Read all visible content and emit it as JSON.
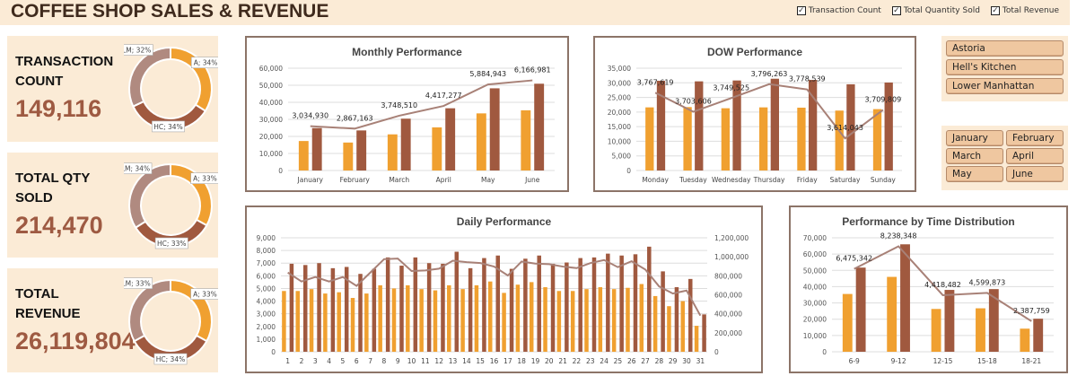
{
  "header": {
    "title": "COFFEE SHOP SALES & REVENUE",
    "toggles": [
      {
        "label": "Transaction Count",
        "checked": true
      },
      {
        "label": "Total Quantity Sold",
        "checked": true
      },
      {
        "label": "Total Revenue",
        "checked": true
      }
    ]
  },
  "colors": {
    "transactions": "#F0A030",
    "quantity": "#A0593F",
    "revenue_line": "#A88177",
    "lm": "#B08A80",
    "panel": "#FBEBD6"
  },
  "kpis": [
    {
      "label": "TRANSACTION COUNT",
      "value": "149,116",
      "slices": [
        {
          "label": "A; 34%",
          "pct": 34
        },
        {
          "label": "HC; 34%",
          "pct": 34
        },
        {
          "label": "LM; 32%",
          "pct": 32
        }
      ]
    },
    {
      "label": "TOTAL QTY SOLD",
      "value": "214,470",
      "slices": [
        {
          "label": "A; 33%",
          "pct": 33
        },
        {
          "label": "HC; 33%",
          "pct": 33
        },
        {
          "label": "LM; 34%",
          "pct": 34
        }
      ]
    },
    {
      "label": "TOTAL REVENUE",
      "value": "26,119,804",
      "slices": [
        {
          "label": "A; 33%",
          "pct": 33
        },
        {
          "label": "HC; 34%",
          "pct": 34
        },
        {
          "label": "LM; 33%",
          "pct": 33
        }
      ]
    }
  ],
  "slicers": {
    "locations": [
      "Astoria",
      "Hell's Kitchen",
      "Lower Manhattan"
    ],
    "months": [
      "January",
      "February",
      "March",
      "April",
      "May",
      "June"
    ]
  },
  "chart_data": [
    {
      "id": "monthly",
      "type": "bar",
      "title": "Monthly Performance",
      "categories": [
        "January",
        "February",
        "March",
        "April",
        "May",
        "June"
      ],
      "ylim": [
        0,
        60000
      ],
      "yticks": [
        0,
        10000,
        20000,
        30000,
        40000,
        50000,
        60000
      ],
      "grid": true,
      "series": [
        {
          "values": [
            17300,
            16400,
            21200,
            25300,
            33500,
            35300
          ]
        },
        {
          "values": [
            24900,
            23500,
            30400,
            36500,
            48200,
            50900
          ]
        }
      ],
      "line": {
        "values": [
          3034930,
          2867163,
          3748510,
          4417277,
          5884943,
          6166981
        ],
        "labels": [
          "3,034,930",
          "2,867,163",
          "3,748,510",
          "4,417,277",
          "5,884,943",
          "6,166,981"
        ],
        "ylim": [
          0,
          7000000
        ]
      }
    },
    {
      "id": "dow",
      "type": "bar",
      "title": "DOW Performance",
      "categories": [
        "Monday",
        "Tuesday",
        "Wednesday",
        "Thursday",
        "Friday",
        "Saturday",
        "Sunday"
      ],
      "ylim": [
        0,
        35000
      ],
      "yticks": [
        0,
        5000,
        10000,
        15000,
        20000,
        25000,
        30000,
        35000
      ],
      "grid": true,
      "series": [
        {
          "values": [
            21600,
            21700,
            21300,
            21600,
            21500,
            20500,
            21000
          ]
        },
        {
          "values": [
            30700,
            30500,
            30800,
            31400,
            31000,
            29500,
            30100
          ]
        }
      ],
      "line": {
        "values": [
          3767619,
          3703606,
          3749525,
          3796263,
          3778539,
          3614043,
          3709809
        ],
        "labels": [
          "3,767,619",
          "3,703,606",
          "3,749,525",
          "3,796,263",
          "3,778,539",
          "3,614,043",
          "3,709,809"
        ],
        "ylim": [
          3506000,
          3850000
        ]
      }
    },
    {
      "id": "daily",
      "type": "bar",
      "title": "Daily Performance",
      "categories": [
        "1",
        "2",
        "3",
        "4",
        "5",
        "6",
        "7",
        "8",
        "9",
        "10",
        "11",
        "12",
        "13",
        "14",
        "15",
        "16",
        "17",
        "18",
        "19",
        "20",
        "21",
        "22",
        "23",
        "24",
        "25",
        "26",
        "27",
        "28",
        "29",
        "30",
        "31"
      ],
      "ylim": [
        0,
        9000
      ],
      "yticks": [
        0,
        1000,
        2000,
        3000,
        4000,
        5000,
        6000,
        7000,
        8000,
        9000
      ],
      "grid": true,
      "series": [
        {
          "values": [
            4800,
            4800,
            4950,
            4600,
            4700,
            4250,
            4600,
            5250,
            5000,
            5250,
            4950,
            4850,
            5250,
            4950,
            5250,
            5550,
            4650,
            5300,
            5500,
            5100,
            4800,
            4800,
            4950,
            5100,
            4950,
            5050,
            5350,
            4400,
            3600,
            4000,
            2050
          ]
        },
        {
          "values": [
            6950,
            6850,
            7000,
            6600,
            6700,
            6150,
            6550,
            7450,
            6800,
            7450,
            7000,
            6950,
            7900,
            6600,
            7400,
            7600,
            6550,
            7350,
            7600,
            6950,
            7050,
            7400,
            7450,
            7750,
            7600,
            7700,
            8300,
            6350,
            5100,
            5750,
            2950
          ]
        }
      ],
      "line": {
        "values": [
          834000,
          740000,
          787000,
          740000,
          787000,
          694000,
          834000,
          975000,
          981000,
          850000,
          856000,
          875000,
          959000,
          944000,
          934000,
          897000,
          803000,
          950000,
          928000,
          922000,
          897000,
          881000,
          934000,
          966000,
          891000,
          953000,
          866000,
          688000,
          613000,
          645000,
          381000
        ],
        "ylim": [
          0,
          1200000
        ],
        "yticks": [
          0,
          200000,
          400000,
          600000,
          800000,
          1000000,
          1200000
        ]
      }
    },
    {
      "id": "time",
      "type": "bar",
      "title": "Performance by Time Distribution",
      "categories": [
        "6-9",
        "9-12",
        "12-15",
        "15-18",
        "18-21"
      ],
      "ylim": [
        0,
        70000
      ],
      "yticks": [
        0,
        10000,
        20000,
        30000,
        40000,
        50000,
        60000,
        70000
      ],
      "grid": true,
      "series": [
        {
          "values": [
            35500,
            46000,
            26300,
            26700,
            14200
          ]
        },
        {
          "values": [
            51700,
            66000,
            38000,
            38500,
            20300
          ]
        }
      ],
      "line": {
        "values": [
          6475342,
          8238348,
          4418482,
          4599873,
          2387759
        ],
        "labels": [
          "6,475,342",
          "8,238,348",
          "4,418,482",
          "4,599,873",
          "2,387,759"
        ],
        "ylim": [
          0,
          8900000
        ]
      }
    }
  ]
}
